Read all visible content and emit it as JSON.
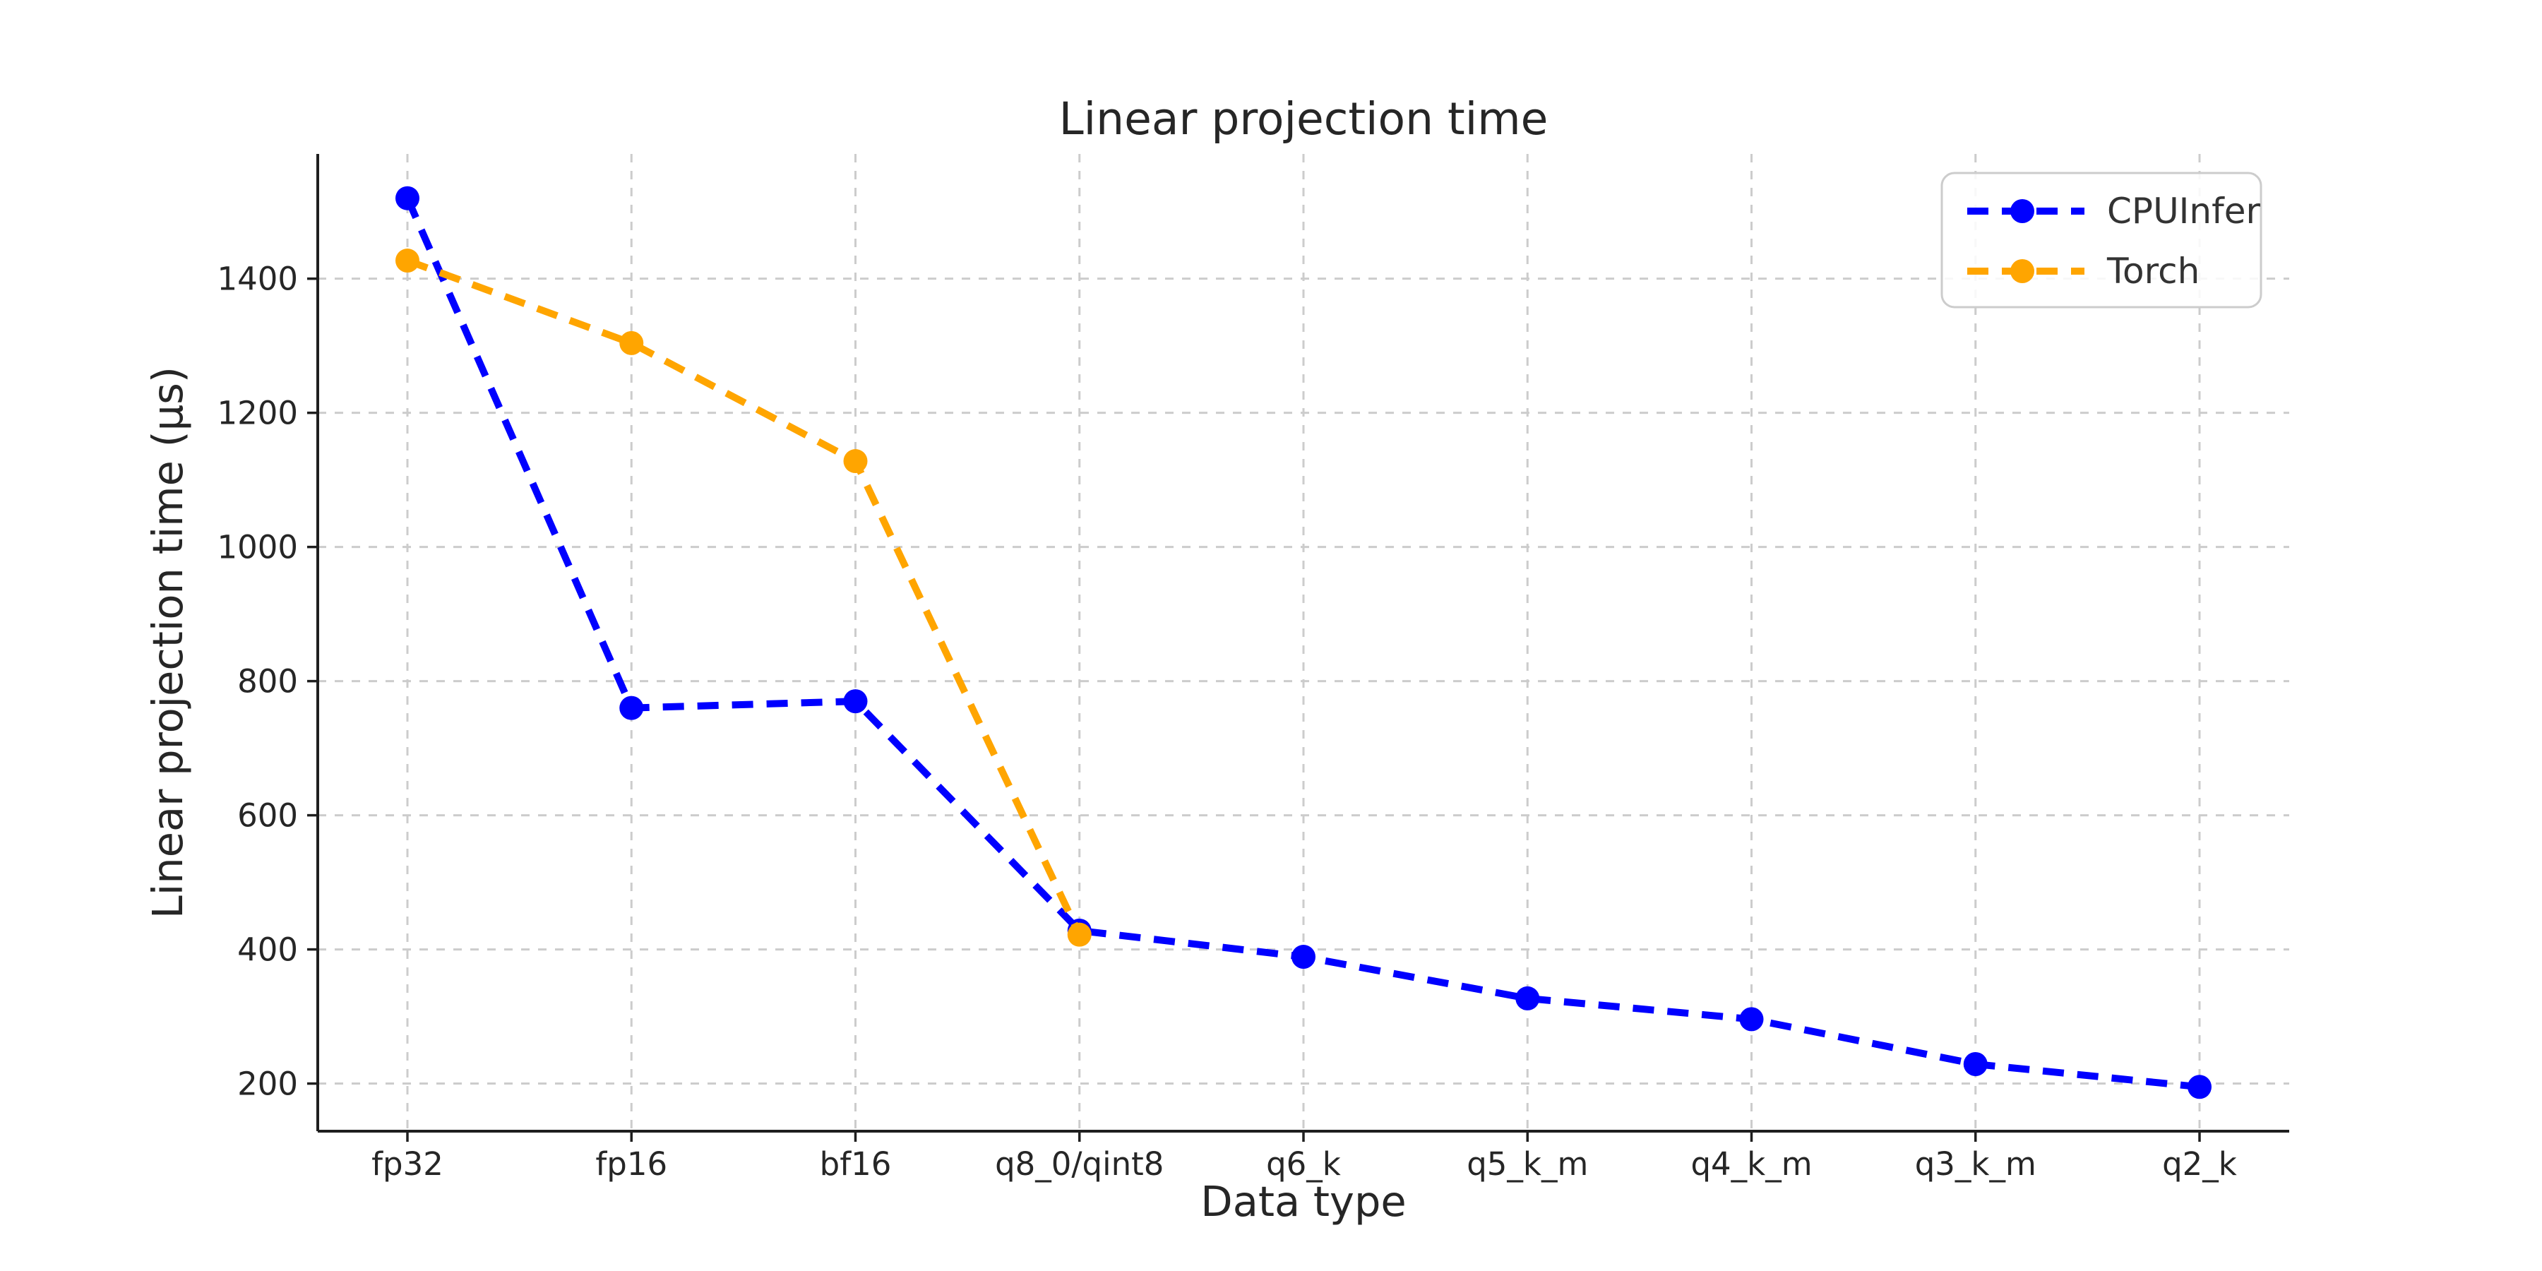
{
  "chart_data": {
    "type": "line",
    "title": "Linear projection time",
    "xlabel": "Data type",
    "ylabel": "Linear projection time (µs)",
    "categories": [
      "fp32",
      "fp16",
      "bf16",
      "q8_0/qint8",
      "q6_k",
      "q5_k_m",
      "q4_k_m",
      "q3_k_m",
      "q2_k"
    ],
    "series": [
      {
        "name": "CPUInfer",
        "color": "#0000ff",
        "values": [
          1520,
          760,
          770,
          428,
          389,
          327,
          296,
          229,
          195
        ]
      },
      {
        "name": "Torch",
        "color": "#ffa500",
        "values": [
          1427,
          1304,
          1128,
          422
        ]
      }
    ],
    "y_ticks": [
      200,
      400,
      600,
      800,
      1000,
      1200,
      1400
    ],
    "ylim": [
      129,
      1586
    ],
    "grid": true,
    "grid_style": "dashed",
    "line_style": "dashed",
    "marker": "circle",
    "legend_position": "upper right"
  },
  "colors": {
    "background": "#ffffff",
    "grid": "#cccccc",
    "text": "#262626",
    "spine": "#1f1f1f",
    "legend_border": "#cccccc",
    "cpuinfer": "#0000ff",
    "torch": "#ffa500"
  }
}
